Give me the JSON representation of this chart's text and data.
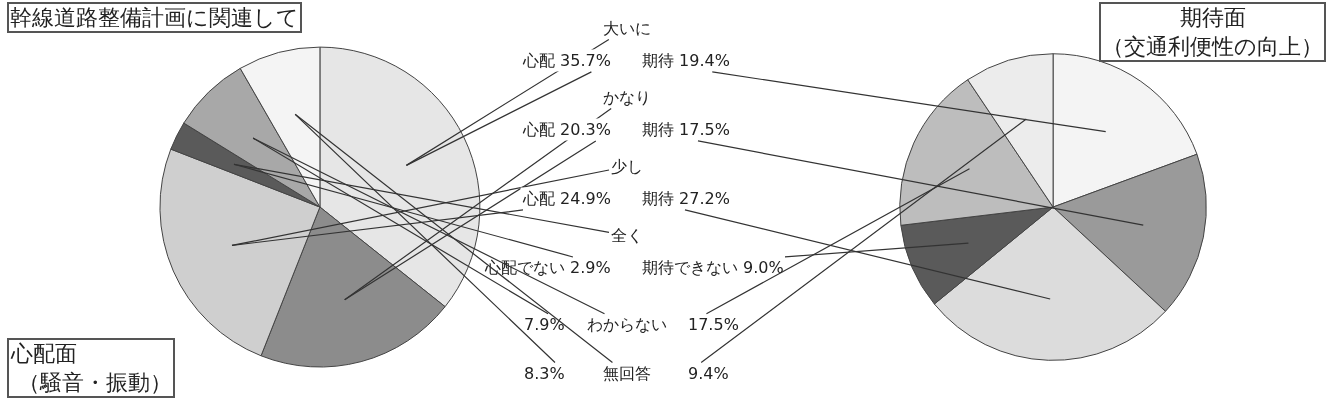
{
  "chart_data": [
    {
      "type": "pie",
      "title": "心配面",
      "subtitle": "（騒音・振動）",
      "annotations": [
        "幹線道路整備計画に関連して"
      ],
      "categories": [
        "大いに",
        "かなり",
        "少し",
        "全く",
        "わからない",
        "無回答"
      ],
      "values": [
        35.7,
        20.3,
        24.9,
        2.9,
        7.9,
        8.3
      ],
      "value_labels": [
        "心配 35.7%",
        "心配 20.3%",
        "心配 24.9%",
        "心配でない 2.9%",
        "7.9%",
        "8.3%"
      ],
      "colors": [
        "#e6e6e6",
        "#8c8c8c",
        "#cfcfcf",
        "#5a5a5a",
        "#a8a8a8",
        "#f4f4f4"
      ]
    },
    {
      "type": "pie",
      "title": "期待面",
      "subtitle": "（交通利便性の向上）",
      "values": [
        19.4,
        17.5,
        27.2,
        9.0,
        17.5,
        9.4
      ],
      "value_labels": [
        "期待 19.4%",
        "期待 17.5%",
        "期待 27.2%",
        "期待できない 9.0%",
        "17.5%",
        "9.4%"
      ],
      "colors": [
        "#f4f4f4",
        "#9a9a9a",
        "#dcdcdc",
        "#5a5a5a",
        "#bdbdbd",
        "#ececec"
      ]
    }
  ]
}
